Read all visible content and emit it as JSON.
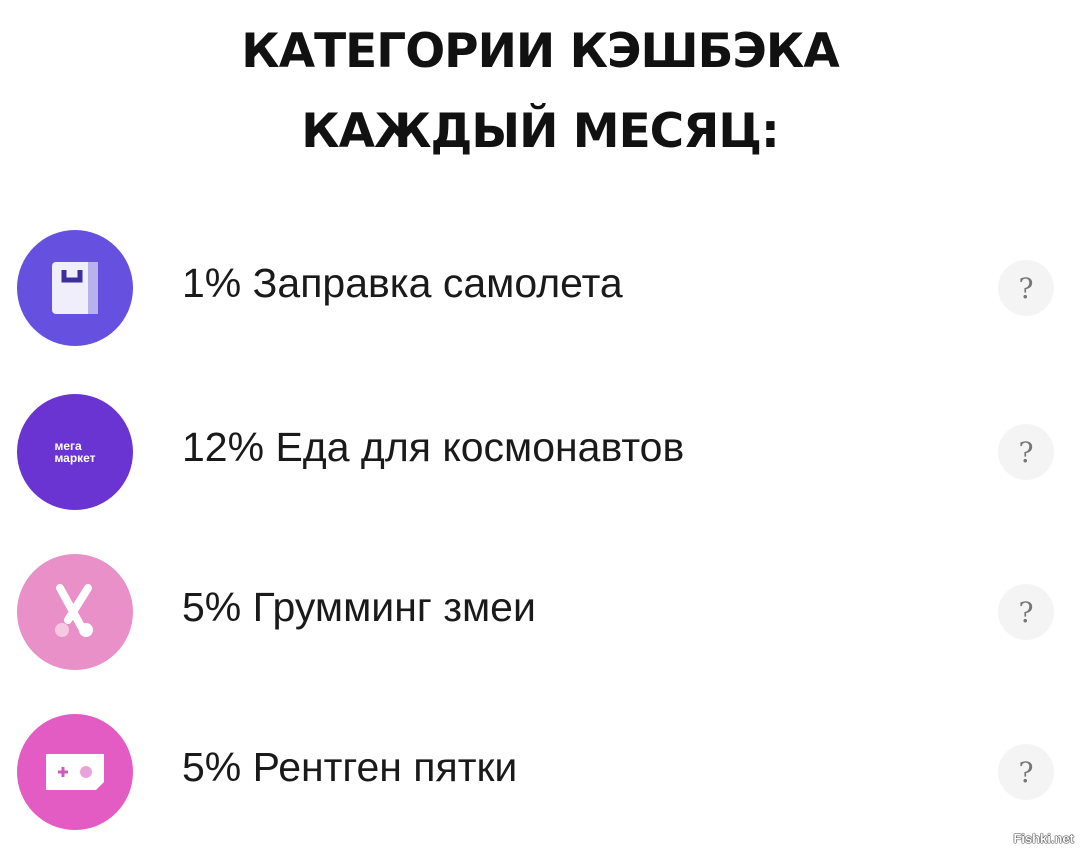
{
  "title": {
    "line1": "КАТЕГОРИИ КЭШБЭКА",
    "line2": "КАЖДЫЙ МЕСЯЦ:"
  },
  "categories": [
    {
      "label": "1%  Заправка самолета",
      "icon": "shopping-bag-icon",
      "color": "#6650e0",
      "help": "?"
    },
    {
      "label": "12%  Еда для космонавтов",
      "icon": "megamarket-logo",
      "logo_text": "мега маркет",
      "color": "#6a34d2",
      "help": "?"
    },
    {
      "label": "5% Грумминг змеи",
      "icon": "scissors-icon",
      "color": "#ea90c8",
      "help": "?"
    },
    {
      "label": "5% Рентген пятки",
      "icon": "gamepad-icon",
      "color": "#e35cc4",
      "help": "?"
    }
  ],
  "watermark": "Fishki.net"
}
